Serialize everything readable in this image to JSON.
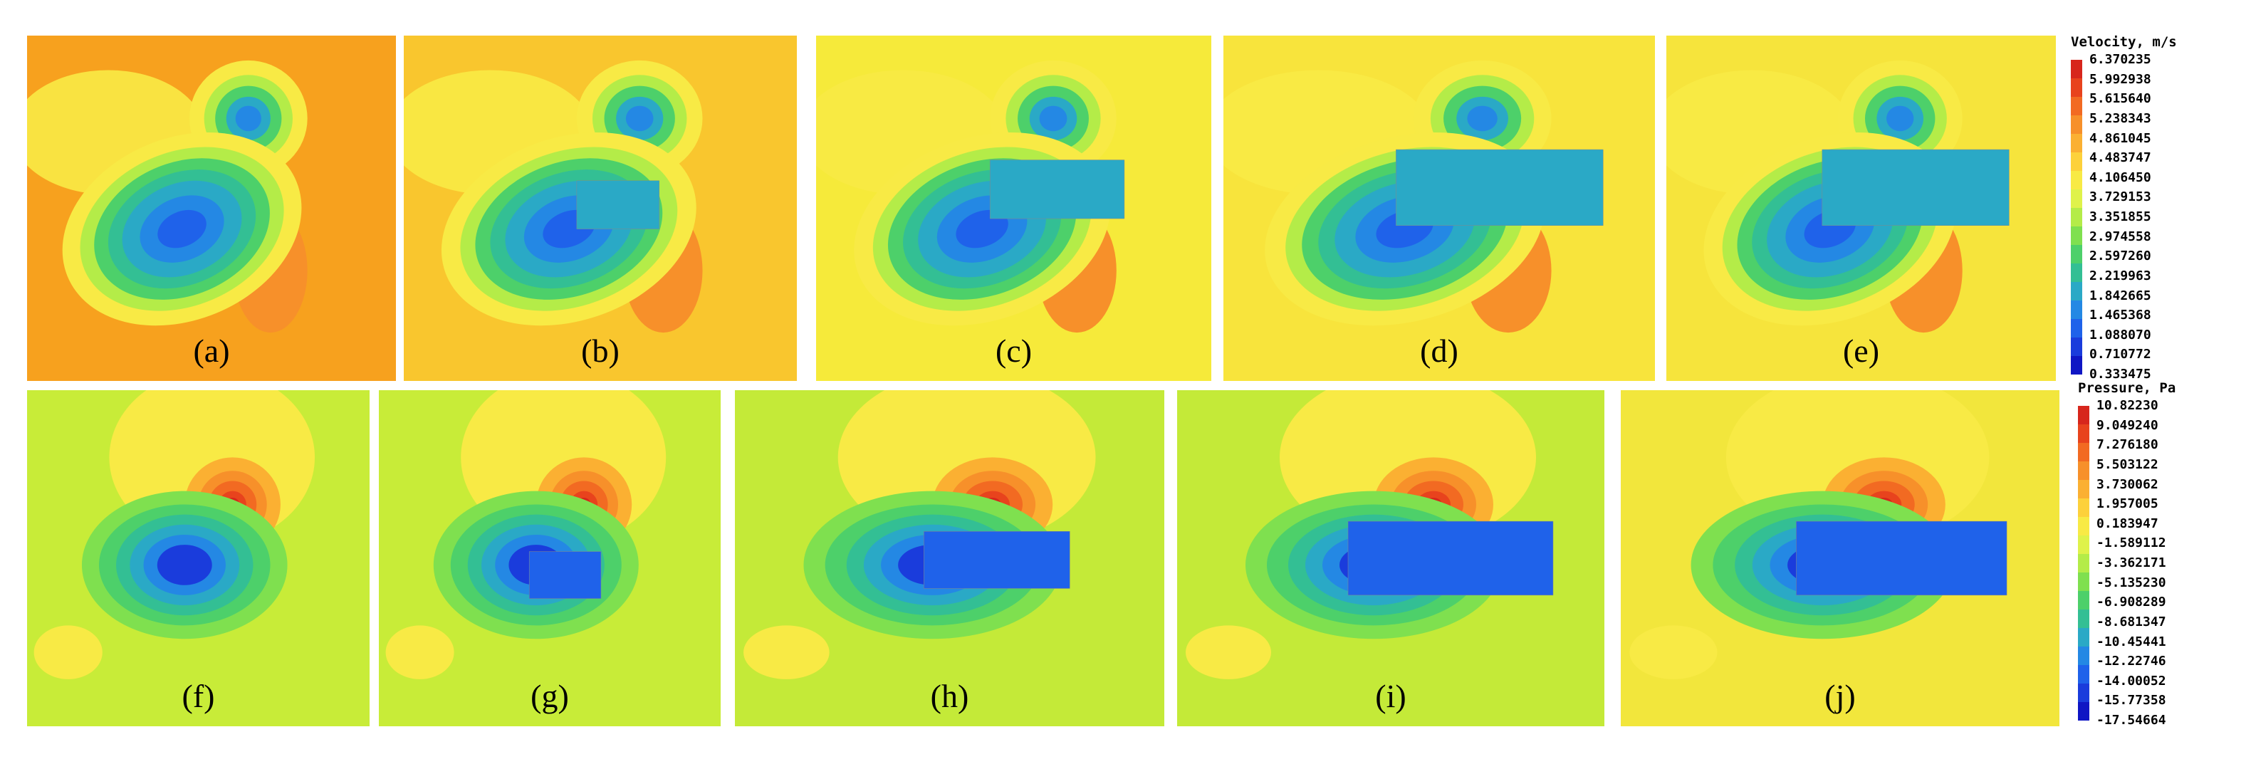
{
  "velocity_legend": {
    "title": "Velocity, m/s",
    "ticks": [
      "6.370235",
      "5.992938",
      "5.615640",
      "5.238343",
      "4.861045",
      "4.483747",
      "4.106450",
      "3.729153",
      "3.351855",
      "2.974558",
      "2.597260",
      "2.219963",
      "1.842665",
      "1.465368",
      "1.088070",
      "0.710772",
      "0.333475"
    ]
  },
  "pressure_legend": {
    "title": "Pressure, Pa",
    "ticks": [
      "10.82230",
      "9.049240",
      "7.276180",
      "5.503122",
      "3.730062",
      "1.957005",
      "0.183947",
      "-1.589112",
      "-3.362171",
      "-5.135230",
      "-6.908289",
      "-8.681347",
      "-10.45441",
      "-12.22746",
      "-14.00052",
      "-15.77358",
      "-17.54664"
    ]
  },
  "colormap": [
    "#d7261c",
    "#e8431d",
    "#f26a22",
    "#f7902a",
    "#fbb032",
    "#fdd13b",
    "#f8ea45",
    "#dff24a",
    "#b4ec48",
    "#7fe04f",
    "#4dd06a",
    "#33bf94",
    "#2aa9c6",
    "#2488e4",
    "#1f62ea",
    "#1a3cdc",
    "#0f16c4"
  ],
  "velocity_panels": [
    {
      "label": "(a)",
      "bg": "#f7a11e",
      "rect": null
    },
    {
      "label": "(b)",
      "bg": "#f9c62e",
      "rect": "small"
    },
    {
      "label": "(c)",
      "bg": "#f6ea3a",
      "rect": "medium"
    },
    {
      "label": "(d)",
      "bg": "#f8e43c",
      "rect": "large"
    },
    {
      "label": "(e)",
      "bg": "#f6e43c",
      "rect": "large"
    }
  ],
  "pressure_panels": [
    {
      "label": "(f)",
      "bg": "#c8ec38",
      "rect": null
    },
    {
      "label": "(g)",
      "bg": "#c8ec38",
      "rect": "small"
    },
    {
      "label": "(h)",
      "bg": "#c4ea38",
      "rect": "medium"
    },
    {
      "label": "(i)",
      "bg": "#c4ea38",
      "rect": "large"
    },
    {
      "label": "(j)",
      "bg": "#f2e63c",
      "rect": "large"
    }
  ]
}
